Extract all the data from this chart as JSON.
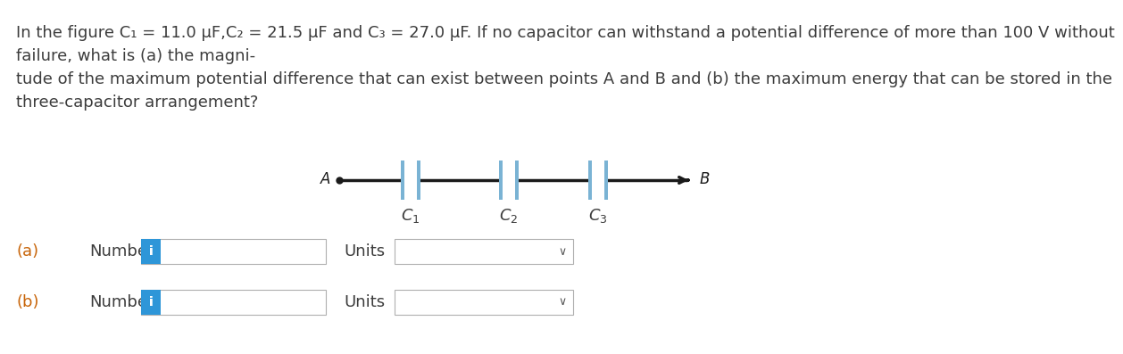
{
  "title_line1": "In the figure C₁ = 11.0 μF,C₂ = 21.5 μF and C₃ = 27.0 μF. If no capacitor can withstand a potential difference of more than 100 V without",
  "title_line2": "failure, what is (a) the magni-",
  "title_line3": "tude of the maximum potential difference that can exist between points A and B and (b) the maximum energy that can be stored in the",
  "title_line4": "three-capacitor arrangement?",
  "text_color": "#3c3c3c",
  "bold_color": "#1a1a1a",
  "background_color": "#ffffff",
  "circuit_line_color": "#1a1a1a",
  "capacitor_plate_color": "#7ab3d4",
  "label_color": "#3c3c3c",
  "a_label_prefix": "(a)",
  "a_label_number": "Number",
  "b_label_prefix": "(b)",
  "b_label_number": "Number",
  "units_label": "Units",
  "i_button_color": "#2e96d8",
  "i_button_text": "i",
  "font_size": 13.0,
  "circuit_font_size": 12.0
}
